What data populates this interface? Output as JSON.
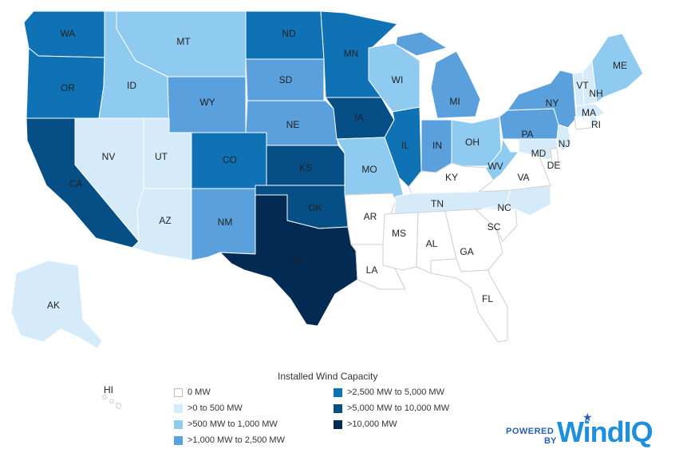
{
  "legend": {
    "title": "Installed Wind Capacity",
    "items": [
      {
        "label": "0 MW",
        "color": "#ffffff"
      },
      {
        "label": ">0 to 500 MW",
        "color": "#d6ebfa"
      },
      {
        "label": ">500 MW to 1,000 MW",
        "color": "#8fcaf0"
      },
      {
        "label": ">1,000 MW to 2,500 MW",
        "color": "#5aa0dc"
      },
      {
        "label": ">2,500 MW to 5,000 MW",
        "color": "#0f72b4"
      },
      {
        "label": ">5,000 MW to 10,000 MW",
        "color": "#064f86"
      },
      {
        "label": ">10,000 MW",
        "color": "#022a52"
      }
    ]
  },
  "states": {
    "WA": {
      "label": "WA",
      "tier": 4
    },
    "OR": {
      "label": "OR",
      "tier": 4
    },
    "CA": {
      "label": "CA",
      "tier": 5
    },
    "NV": {
      "label": "NV",
      "tier": 1
    },
    "ID": {
      "label": "ID",
      "tier": 2
    },
    "MT": {
      "label": "MT",
      "tier": 2
    },
    "WY": {
      "label": "WY",
      "tier": 3
    },
    "UT": {
      "label": "UT",
      "tier": 1
    },
    "AZ": {
      "label": "AZ",
      "tier": 1
    },
    "CO": {
      "label": "CO",
      "tier": 4
    },
    "NM": {
      "label": "NM",
      "tier": 3
    },
    "ND": {
      "label": "ND",
      "tier": 4
    },
    "SD": {
      "label": "SD",
      "tier": 3
    },
    "NE": {
      "label": "NE",
      "tier": 3
    },
    "KS": {
      "label": "KS",
      "tier": 5
    },
    "OK": {
      "label": "OK",
      "tier": 5
    },
    "TX": {
      "label": "TX",
      "tier": 6
    },
    "MN": {
      "label": "MN",
      "tier": 4
    },
    "IA": {
      "label": "IA",
      "tier": 5
    },
    "MO": {
      "label": "MO",
      "tier": 2
    },
    "AR": {
      "label": "AR",
      "tier": 0
    },
    "LA": {
      "label": "LA",
      "tier": 0
    },
    "WI": {
      "label": "WI",
      "tier": 2
    },
    "IL": {
      "label": "IL",
      "tier": 4
    },
    "MI": {
      "label": "MI",
      "tier": 3
    },
    "IN": {
      "label": "IN",
      "tier": 3
    },
    "OH": {
      "label": "OH",
      "tier": 2
    },
    "KY": {
      "label": "KY",
      "tier": 0
    },
    "TN": {
      "label": "TN",
      "tier": 1
    },
    "MS": {
      "label": "MS",
      "tier": 0
    },
    "AL": {
      "label": "AL",
      "tier": 0
    },
    "GA": {
      "label": "GA",
      "tier": 0
    },
    "FL": {
      "label": "FL",
      "tier": 0
    },
    "SC": {
      "label": "SC",
      "tier": 0
    },
    "NC": {
      "label": "NC",
      "tier": 1
    },
    "VA": {
      "label": "VA",
      "tier": 0
    },
    "WV": {
      "label": "WV",
      "tier": 2
    },
    "PA": {
      "label": "PA",
      "tier": 3
    },
    "NY": {
      "label": "NY",
      "tier": 3
    },
    "MD": {
      "label": "MD",
      "tier": 1
    },
    "DE": {
      "label": "DE",
      "tier": 0
    },
    "NJ": {
      "label": "NJ",
      "tier": 1
    },
    "VT": {
      "label": "VT",
      "tier": 1
    },
    "NH": {
      "label": "NH",
      "tier": 1
    },
    "MA": {
      "label": "MA",
      "tier": 1
    },
    "RI": {
      "label": "RI",
      "tier": 1
    },
    "CT": {
      "label": "",
      "tier": 0
    },
    "ME": {
      "label": "ME",
      "tier": 2
    },
    "AK": {
      "label": "AK",
      "tier": 1
    },
    "HI": {
      "label": "HI",
      "tier": 0
    }
  },
  "logo": {
    "powered": "POWERED",
    "by": "BY",
    "brand": "WindIQ"
  }
}
